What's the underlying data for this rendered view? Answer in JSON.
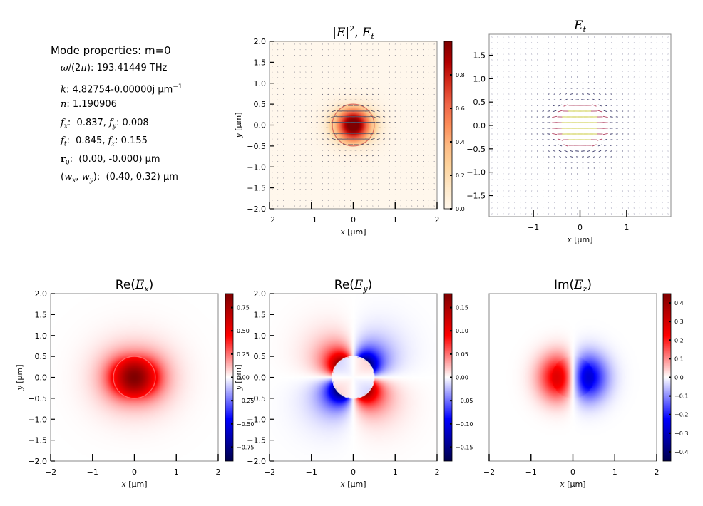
{
  "mode_properties": {
    "title": "Mode properties: m=0",
    "omega_value": "193.41449 THz",
    "k_value": "4.82754-0.00000j",
    "k_unit": "μm",
    "n_value": "1.190906",
    "fx_value": "0.837",
    "fy_value": "0.008",
    "ft_value": "0.845",
    "fz_value": "0.155",
    "r0_value": "(0.00, -0.000)",
    "r0_unit": "μm",
    "w_value": "(0.40, 0.32)",
    "w_unit": "μm"
  },
  "chart_data": [
    {
      "id": "intensity",
      "type": "heatmap",
      "title": "|E|², E_t",
      "xlabel": "x [μm]",
      "ylabel": "y [μm]",
      "xlim": [
        -2,
        2
      ],
      "ylim": [
        -2,
        2
      ],
      "xticks": [
        -2,
        -1,
        0,
        1,
        2
      ],
      "yticks": [
        -2.0,
        -1.5,
        -1.0,
        -0.5,
        0.0,
        0.5,
        1.0,
        1.5,
        2.0
      ],
      "colormap": "OrRd",
      "colorbar": {
        "min": 0.0,
        "max": 1.0,
        "ticks": [
          0.0,
          0.2,
          0.4,
          0.6,
          0.8
        ]
      },
      "field": {
        "component": "intensity",
        "peak": 1.0,
        "center": [
          0,
          0
        ],
        "core_radius": 0.5,
        "wx": 0.4,
        "wy": 0.32
      },
      "overlay": "transverse field arrows (mostly horizontal, E_x dominant)",
      "waveguide_core": {
        "shape": "circle",
        "center": [
          0,
          0
        ],
        "radius": 0.5
      }
    },
    {
      "id": "et_quiver",
      "type": "scatter",
      "title": "E_t",
      "xlabel": "x [μm]",
      "ylabel": "",
      "xlim": [
        -1.95,
        1.95
      ],
      "ylim": [
        -1.95,
        1.95
      ],
      "xticks": [
        -1,
        0,
        1
      ],
      "yticks": [
        -1.5,
        -1.0,
        -0.5,
        0.0,
        0.5,
        1.0,
        1.5
      ],
      "overlay": "quiver plot of transverse field, arrows horizontal near center"
    },
    {
      "id": "re_ex",
      "type": "heatmap",
      "title": "Re(E_x)",
      "xlabel": "x [μm]",
      "ylabel": "y [μm]",
      "xlim": [
        -2,
        2
      ],
      "ylim": [
        -2,
        2
      ],
      "xticks": [
        -2,
        -1,
        0,
        1,
        2
      ],
      "yticks": [
        -2.0,
        -1.5,
        -1.0,
        -0.5,
        0.0,
        0.5,
        1.0,
        1.5,
        2.0
      ],
      "colormap": "seismic",
      "colorbar": {
        "min": -0.9,
        "max": 0.9,
        "ticks": [
          -0.75,
          -0.5,
          -0.25,
          0.0,
          0.25,
          0.5,
          0.75
        ],
        "tick_labels": [
          "−0.75",
          "−0.50",
          "−0.25",
          "0.00",
          "0.25",
          "0.50",
          "0.75"
        ]
      },
      "field": {
        "component": "ex",
        "peak": 0.9
      }
    },
    {
      "id": "re_ey",
      "type": "heatmap",
      "title": "Re(E_y)",
      "xlabel": "x [μm]",
      "ylabel": "y [μm]",
      "xlim": [
        -2,
        2
      ],
      "ylim": [
        -2,
        2
      ],
      "xticks": [
        -2,
        -1,
        0,
        1,
        2
      ],
      "yticks": [
        -2.0,
        -1.5,
        -1.0,
        -0.5,
        0.0,
        0.5,
        1.0,
        1.5,
        2.0
      ],
      "colormap": "seismic",
      "colorbar": {
        "min": -0.18,
        "max": 0.18,
        "ticks": [
          -0.15,
          -0.1,
          -0.05,
          0.0,
          0.05,
          0.1,
          0.15
        ],
        "tick_labels": [
          "−0.15",
          "−0.10",
          "−0.05",
          "0.00",
          "0.05",
          "0.10",
          "0.15"
        ]
      },
      "field": {
        "component": "ey",
        "peak": 0.18
      }
    },
    {
      "id": "im_ez",
      "type": "heatmap",
      "title": "Im(E_z)",
      "xlabel": "x [μm]",
      "ylabel": "",
      "xlim": [
        -2,
        2
      ],
      "ylim": [
        -2,
        2
      ],
      "xticks": [
        -2,
        -1,
        0,
        1,
        2
      ],
      "yticks": [],
      "colormap": "seismic",
      "colorbar": {
        "min": -0.45,
        "max": 0.45,
        "ticks": [
          -0.4,
          -0.3,
          -0.2,
          -0.1,
          0.0,
          0.1,
          0.2,
          0.3,
          0.4
        ],
        "tick_labels": [
          "−0.4",
          "−0.3",
          "−0.2",
          "−0.1",
          "0.0",
          "0.1",
          "0.2",
          "0.3",
          "0.4"
        ]
      },
      "field": {
        "component": "ez",
        "peak": 0.45
      }
    }
  ]
}
